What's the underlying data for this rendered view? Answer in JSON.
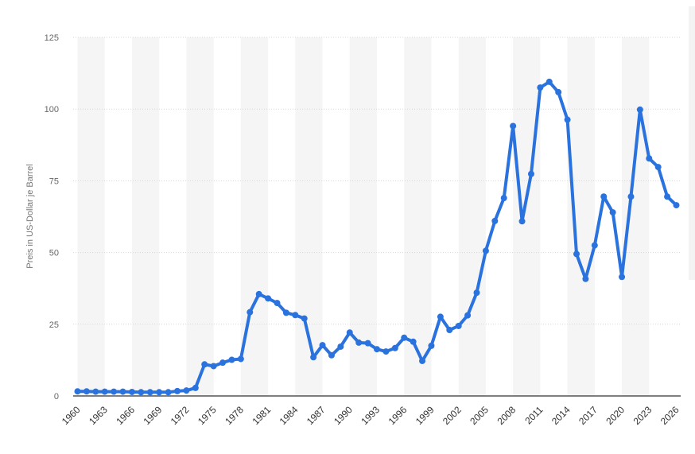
{
  "colors": {
    "series": "#2a72de",
    "band": "#f5f5f5",
    "grid": "#d7d7d7",
    "axis": "#333333"
  },
  "chart_data": {
    "type": "line",
    "title": "",
    "xlabel": "",
    "ylabel": "Preis in US-Dollar je Barrel",
    "ylim": [
      0,
      125
    ],
    "yticks": [
      "0",
      "25",
      "50",
      "75",
      "100",
      "125"
    ],
    "grid": true,
    "legend": "none",
    "x_tick_labels": [
      "1960",
      "1963",
      "1966",
      "1969",
      "1972",
      "1975",
      "1978",
      "1981",
      "1984",
      "1987",
      "1990",
      "1993",
      "1996",
      "1999",
      "2002",
      "2005",
      "2008",
      "2011",
      "2014",
      "2017",
      "2020",
      "2023",
      "2026"
    ],
    "x": [
      1960,
      1961,
      1962,
      1963,
      1964,
      1965,
      1966,
      1967,
      1968,
      1969,
      1970,
      1971,
      1972,
      1973,
      1974,
      1975,
      1976,
      1977,
      1978,
      1979,
      1980,
      1981,
      1982,
      1983,
      1984,
      1985,
      1986,
      1987,
      1988,
      1989,
      1990,
      1991,
      1992,
      1993,
      1994,
      1995,
      1996,
      1997,
      1998,
      1999,
      2000,
      2001,
      2002,
      2003,
      2004,
      2005,
      2006,
      2007,
      2008,
      2009,
      2010,
      2011,
      2012,
      2013,
      2014,
      2015,
      2016,
      2017,
      2018,
      2019,
      2020,
      2021,
      2022,
      2023,
      2024,
      2025,
      2026
    ],
    "series": [
      {
        "values": [
          1.6,
          1.6,
          1.5,
          1.5,
          1.5,
          1.5,
          1.4,
          1.3,
          1.3,
          1.3,
          1.3,
          1.7,
          1.9,
          2.8,
          11.0,
          10.4,
          11.6,
          12.6,
          12.9,
          29.2,
          35.5,
          34.0,
          32.4,
          29.0,
          28.2,
          27.0,
          13.5,
          17.7,
          14.2,
          17.2,
          22.1,
          18.6,
          18.4,
          16.3,
          15.5,
          16.7,
          20.3,
          18.9,
          12.2,
          17.5,
          27.6,
          23.0,
          24.4,
          28.1,
          36.0,
          50.6,
          61.0,
          69.0,
          94.1,
          60.9,
          77.4,
          107.5,
          109.5,
          105.9,
          96.3,
          49.5,
          40.8,
          52.5,
          69.5,
          64.0,
          41.5,
          69.5,
          99.8,
          82.8,
          79.8,
          69.5,
          66.5
        ]
      }
    ]
  }
}
